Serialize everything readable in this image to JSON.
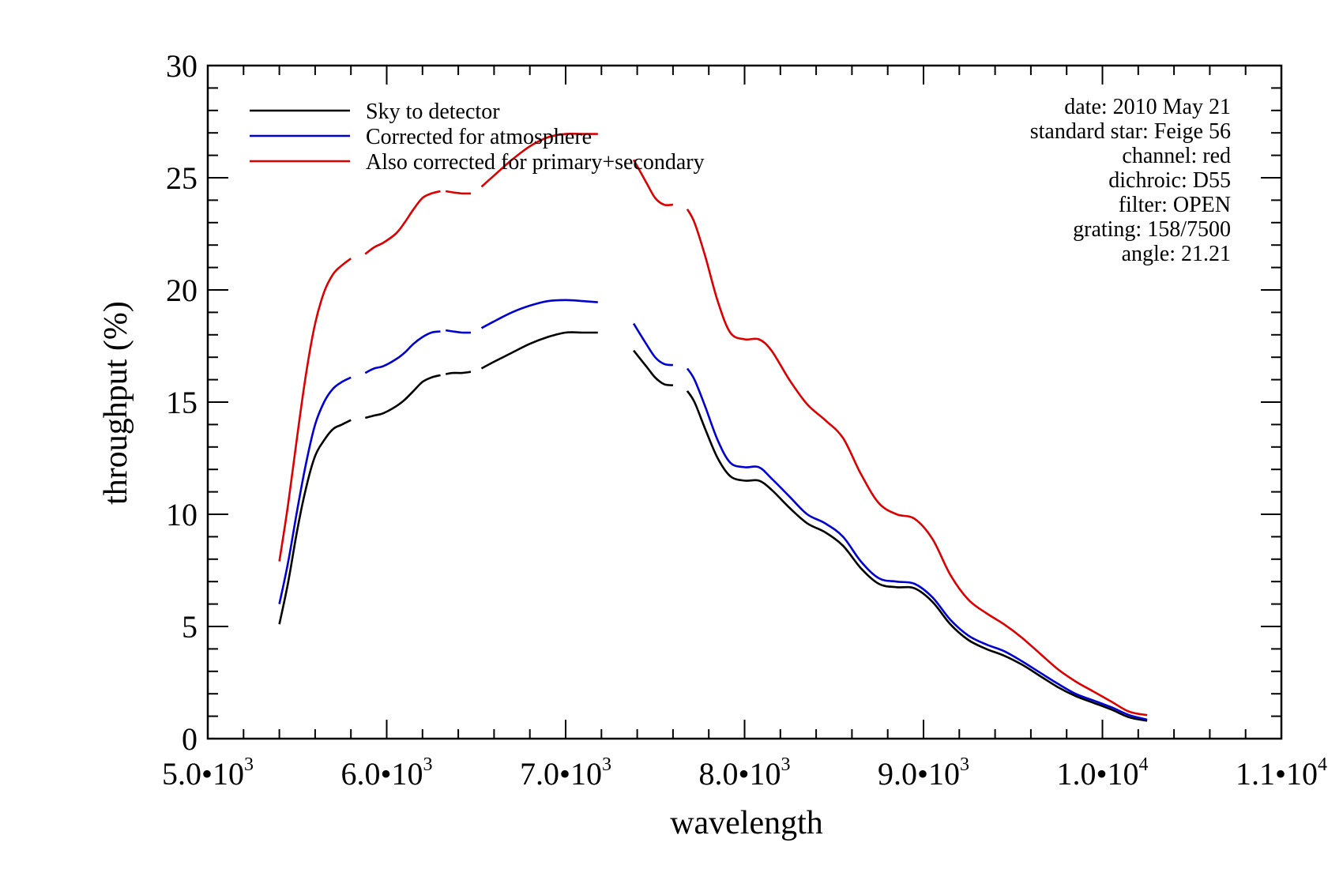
{
  "chart_data": {
    "type": "line",
    "xlabel": "wavelength",
    "ylabel": "throughput (%)",
    "xlim": [
      5000,
      11000
    ],
    "ylim": [
      0,
      30
    ],
    "x_ticks": [
      {
        "value": 5000,
        "mantissa": "5.0•10",
        "exponent": "3"
      },
      {
        "value": 6000,
        "mantissa": "6.0•10",
        "exponent": "3"
      },
      {
        "value": 7000,
        "mantissa": "7.0•10",
        "exponent": "3"
      },
      {
        "value": 8000,
        "mantissa": "8.0•10",
        "exponent": "3"
      },
      {
        "value": 9000,
        "mantissa": "9.0•10",
        "exponent": "3"
      },
      {
        "value": 10000,
        "mantissa": "1.0•10",
        "exponent": "4"
      },
      {
        "value": 11000,
        "mantissa": "1.1•10",
        "exponent": "4"
      }
    ],
    "y_ticks": [
      0,
      5,
      10,
      15,
      20,
      25,
      30
    ],
    "annotations": [
      "date: 2010 May 21",
      "standard star: Feige 56",
      "channel: red",
      "dichroic: D55",
      "filter: OPEN",
      "grating: 158/7500",
      "angle: 21.21"
    ],
    "series": [
      {
        "name": "Sky to detector",
        "color": "#000000",
        "segments": [
          [
            [
              5400,
              5.1
            ],
            [
              5450,
              7.0
            ],
            [
              5500,
              9.3
            ],
            [
              5550,
              11.2
            ],
            [
              5600,
              12.6
            ],
            [
              5650,
              13.3
            ],
            [
              5700,
              13.8
            ],
            [
              5750,
              14.0
            ],
            [
              5800,
              14.2
            ]
          ],
          [
            [
              5880,
              14.3
            ],
            [
              5930,
              14.4
            ],
            [
              5980,
              14.5
            ],
            [
              6050,
              14.8
            ],
            [
              6100,
              15.1
            ],
            [
              6150,
              15.5
            ],
            [
              6200,
              15.9
            ],
            [
              6250,
              16.1
            ],
            [
              6300,
              16.2
            ]
          ],
          [
            [
              6330,
              16.25
            ],
            [
              6370,
              16.3
            ],
            [
              6420,
              16.3
            ],
            [
              6470,
              16.35
            ]
          ],
          [
            [
              6530,
              16.5
            ],
            [
              6600,
              16.8
            ],
            [
              6700,
              17.2
            ],
            [
              6800,
              17.6
            ],
            [
              6900,
              17.9
            ],
            [
              7000,
              18.1
            ],
            [
              7100,
              18.1
            ],
            [
              7180,
              18.1
            ]
          ],
          [
            [
              7380,
              17.3
            ],
            [
              7450,
              16.6
            ],
            [
              7500,
              16.1
            ],
            [
              7550,
              15.8
            ],
            [
              7600,
              15.75
            ]
          ],
          [
            [
              7680,
              15.5
            ],
            [
              7720,
              15.0
            ],
            [
              7780,
              13.8
            ],
            [
              7850,
              12.5
            ],
            [
              7920,
              11.7
            ],
            [
              8000,
              11.5
            ],
            [
              8080,
              11.5
            ],
            [
              8150,
              11.1
            ],
            [
              8250,
              10.3
            ],
            [
              8350,
              9.6
            ],
            [
              8450,
              9.2
            ],
            [
              8550,
              8.6
            ],
            [
              8650,
              7.6
            ],
            [
              8750,
              6.9
            ],
            [
              8850,
              6.75
            ],
            [
              8950,
              6.7
            ],
            [
              9050,
              6.1
            ],
            [
              9150,
              5.1
            ],
            [
              9250,
              4.4
            ],
            [
              9350,
              4.0
            ],
            [
              9450,
              3.7
            ],
            [
              9550,
              3.3
            ],
            [
              9650,
              2.8
            ],
            [
              9750,
              2.3
            ],
            [
              9850,
              1.9
            ],
            [
              9950,
              1.6
            ],
            [
              10050,
              1.3
            ],
            [
              10150,
              0.95
            ],
            [
              10250,
              0.8
            ]
          ]
        ]
      },
      {
        "name": "Corrected for atmosphere",
        "color": "#0000d0",
        "segments": [
          [
            [
              5400,
              6.0
            ],
            [
              5450,
              7.9
            ],
            [
              5500,
              10.2
            ],
            [
              5550,
              12.3
            ],
            [
              5600,
              14.0
            ],
            [
              5650,
              15.0
            ],
            [
              5700,
              15.6
            ],
            [
              5750,
              15.9
            ],
            [
              5800,
              16.1
            ]
          ],
          [
            [
              5880,
              16.3
            ],
            [
              5930,
              16.5
            ],
            [
              5980,
              16.6
            ],
            [
              6050,
              16.9
            ],
            [
              6100,
              17.2
            ],
            [
              6150,
              17.6
            ],
            [
              6200,
              17.9
            ],
            [
              6250,
              18.1
            ],
            [
              6300,
              18.15
            ]
          ],
          [
            [
              6330,
              18.2
            ],
            [
              6370,
              18.15
            ],
            [
              6420,
              18.1
            ],
            [
              6470,
              18.1
            ]
          ],
          [
            [
              6530,
              18.3
            ],
            [
              6600,
              18.6
            ],
            [
              6700,
              19.0
            ],
            [
              6800,
              19.3
            ],
            [
              6900,
              19.5
            ],
            [
              7000,
              19.55
            ],
            [
              7100,
              19.5
            ],
            [
              7180,
              19.45
            ]
          ],
          [
            [
              7380,
              18.5
            ],
            [
              7450,
              17.6
            ],
            [
              7500,
              17.0
            ],
            [
              7550,
              16.7
            ],
            [
              7600,
              16.65
            ]
          ],
          [
            [
              7680,
              16.5
            ],
            [
              7720,
              16.0
            ],
            [
              7780,
              14.8
            ],
            [
              7850,
              13.3
            ],
            [
              7920,
              12.3
            ],
            [
              8000,
              12.1
            ],
            [
              8080,
              12.1
            ],
            [
              8150,
              11.6
            ],
            [
              8250,
              10.8
            ],
            [
              8350,
              10.0
            ],
            [
              8450,
              9.6
            ],
            [
              8550,
              9.0
            ],
            [
              8650,
              7.9
            ],
            [
              8750,
              7.15
            ],
            [
              8850,
              7.0
            ],
            [
              8950,
              6.9
            ],
            [
              9050,
              6.3
            ],
            [
              9150,
              5.3
            ],
            [
              9250,
              4.6
            ],
            [
              9350,
              4.2
            ],
            [
              9450,
              3.9
            ],
            [
              9550,
              3.45
            ],
            [
              9650,
              2.95
            ],
            [
              9750,
              2.45
            ],
            [
              9850,
              2.0
            ],
            [
              9950,
              1.7
            ],
            [
              10050,
              1.4
            ],
            [
              10150,
              1.05
            ],
            [
              10250,
              0.85
            ]
          ]
        ]
      },
      {
        "name": "Also corrected for primary+secondary",
        "color": "#dd0000",
        "segments": [
          [
            [
              5400,
              7.9
            ],
            [
              5450,
              10.5
            ],
            [
              5500,
              13.5
            ],
            [
              5550,
              16.3
            ],
            [
              5600,
              18.5
            ],
            [
              5650,
              19.9
            ],
            [
              5700,
              20.7
            ],
            [
              5750,
              21.1
            ],
            [
              5800,
              21.4
            ]
          ],
          [
            [
              5880,
              21.6
            ],
            [
              5930,
              21.9
            ],
            [
              5980,
              22.1
            ],
            [
              6050,
              22.5
            ],
            [
              6100,
              23.0
            ],
            [
              6150,
              23.6
            ],
            [
              6200,
              24.1
            ],
            [
              6250,
              24.3
            ],
            [
              6300,
              24.4
            ]
          ],
          [
            [
              6330,
              24.4
            ],
            [
              6370,
              24.35
            ],
            [
              6420,
              24.3
            ],
            [
              6470,
              24.3
            ]
          ],
          [
            [
              6530,
              24.6
            ],
            [
              6600,
              25.1
            ],
            [
              6700,
              25.8
            ],
            [
              6800,
              26.4
            ],
            [
              6900,
              26.8
            ],
            [
              7000,
              26.95
            ],
            [
              7100,
              26.95
            ],
            [
              7180,
              26.95
            ]
          ],
          [
            [
              7380,
              25.8
            ],
            [
              7450,
              24.8
            ],
            [
              7500,
              24.1
            ],
            [
              7550,
              23.8
            ],
            [
              7600,
              23.8
            ]
          ],
          [
            [
              7680,
              23.6
            ],
            [
              7720,
              23.0
            ],
            [
              7780,
              21.5
            ],
            [
              7850,
              19.5
            ],
            [
              7920,
              18.1
            ],
            [
              8000,
              17.8
            ],
            [
              8080,
              17.8
            ],
            [
              8150,
              17.3
            ],
            [
              8250,
              16.0
            ],
            [
              8350,
              14.9
            ],
            [
              8450,
              14.2
            ],
            [
              8550,
              13.4
            ],
            [
              8650,
              11.8
            ],
            [
              8750,
              10.5
            ],
            [
              8850,
              10.0
            ],
            [
              8950,
              9.8
            ],
            [
              9050,
              8.9
            ],
            [
              9150,
              7.3
            ],
            [
              9250,
              6.2
            ],
            [
              9350,
              5.6
            ],
            [
              9450,
              5.1
            ],
            [
              9550,
              4.5
            ],
            [
              9650,
              3.8
            ],
            [
              9750,
              3.1
            ],
            [
              9850,
              2.55
            ],
            [
              9950,
              2.1
            ],
            [
              10050,
              1.65
            ],
            [
              10150,
              1.2
            ],
            [
              10250,
              1.05
            ]
          ]
        ]
      }
    ]
  }
}
